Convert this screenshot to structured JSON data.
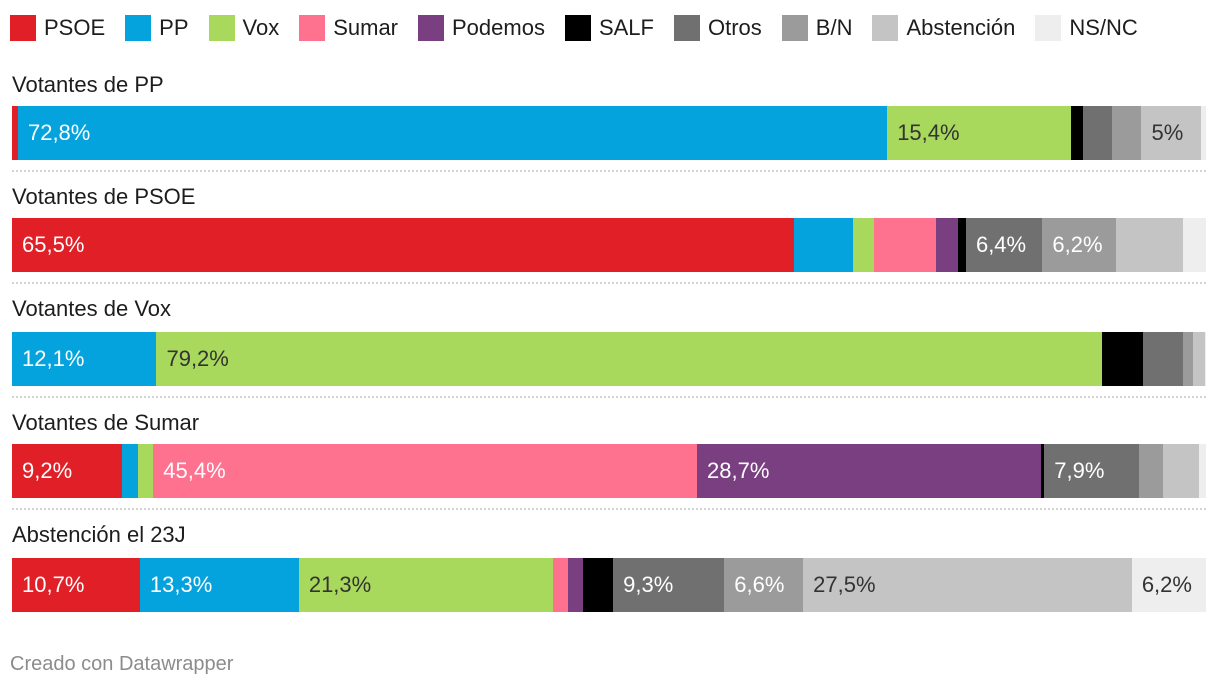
{
  "legend": [
    {
      "label": "PSOE",
      "color": "#e01f26"
    },
    {
      "label": "PP",
      "color": "#05a3dd"
    },
    {
      "label": "Vox",
      "color": "#a8d85c"
    },
    {
      "label": "Sumar",
      "color": "#fe7290"
    },
    {
      "label": "Podemos",
      "color": "#793f80"
    },
    {
      "label": "SALF",
      "color": "#000000"
    },
    {
      "label": "Otros",
      "color": "#707070"
    },
    {
      "label": "B/N",
      "color": "#9b9b9b"
    },
    {
      "label": "Abstención",
      "color": "#c4c4c4"
    },
    {
      "label": "NS/NC",
      "color": "#eeeeee"
    }
  ],
  "chart_data": {
    "type": "bar",
    "orientation": "horizontal",
    "stacked": true,
    "unit": "%",
    "categories": [
      "Votantes de PP",
      "Votantes de PSOE",
      "Votantes de Vox",
      "Votantes de Sumar",
      "Abstención el 23J"
    ],
    "series": [
      {
        "name": "PSOE",
        "color": "#e01f26",
        "values": [
          0.5,
          65.5,
          0,
          9.2,
          10.7
        ],
        "labels": [
          "",
          "65,5%",
          "",
          "9,2%",
          "10,7%"
        ]
      },
      {
        "name": "PP",
        "color": "#05a3dd",
        "values": [
          72.8,
          4.9,
          12.1,
          1.3,
          13.3
        ],
        "labels": [
          "72,8%",
          "",
          "12,1%",
          "",
          "13,3%"
        ]
      },
      {
        "name": "Vox",
        "color": "#a8d85c",
        "values": [
          15.4,
          1.8,
          79.2,
          1.3,
          21.3
        ],
        "labels": [
          "15,4%",
          "",
          "79,2%",
          "",
          "21,3%"
        ]
      },
      {
        "name": "Sumar",
        "color": "#fe7290",
        "values": [
          0,
          5.2,
          0,
          45.4,
          1.2
        ],
        "labels": [
          "",
          "",
          "",
          "45,4%",
          ""
        ]
      },
      {
        "name": "Podemos",
        "color": "#793f80",
        "values": [
          0,
          1.8,
          0,
          28.7,
          1.3
        ],
        "labels": [
          "",
          "",
          "",
          "28,7%",
          ""
        ]
      },
      {
        "name": "SALF",
        "color": "#000000",
        "values": [
          1.0,
          0.7,
          3.4,
          0.3,
          2.5
        ],
        "labels": [
          "",
          "",
          "",
          "",
          ""
        ]
      },
      {
        "name": "Otros",
        "color": "#707070",
        "values": [
          2.4,
          6.4,
          3.4,
          7.9,
          9.3
        ],
        "labels": [
          "",
          "6,4%",
          "",
          "7,9%",
          "9,3%"
        ]
      },
      {
        "name": "B/N",
        "color": "#9b9b9b",
        "values": [
          2.5,
          6.2,
          0.8,
          2.0,
          6.6
        ],
        "labels": [
          "",
          "6,2%",
          "",
          "",
          "6,6%"
        ]
      },
      {
        "name": "Abstención",
        "color": "#c4c4c4",
        "values": [
          5.0,
          5.6,
          1.0,
          3.0,
          27.5
        ],
        "labels": [
          "5%",
          "",
          "",
          "",
          "27,5%"
        ]
      },
      {
        "name": "NS/NC",
        "color": "#eeeeee",
        "values": [
          0.4,
          1.9,
          0.1,
          0.6,
          6.2
        ],
        "labels": [
          "",
          "",
          "",
          "",
          "6,2%"
        ]
      }
    ],
    "xlim": [
      0,
      100
    ]
  },
  "footer": "Creado con Datawrapper"
}
